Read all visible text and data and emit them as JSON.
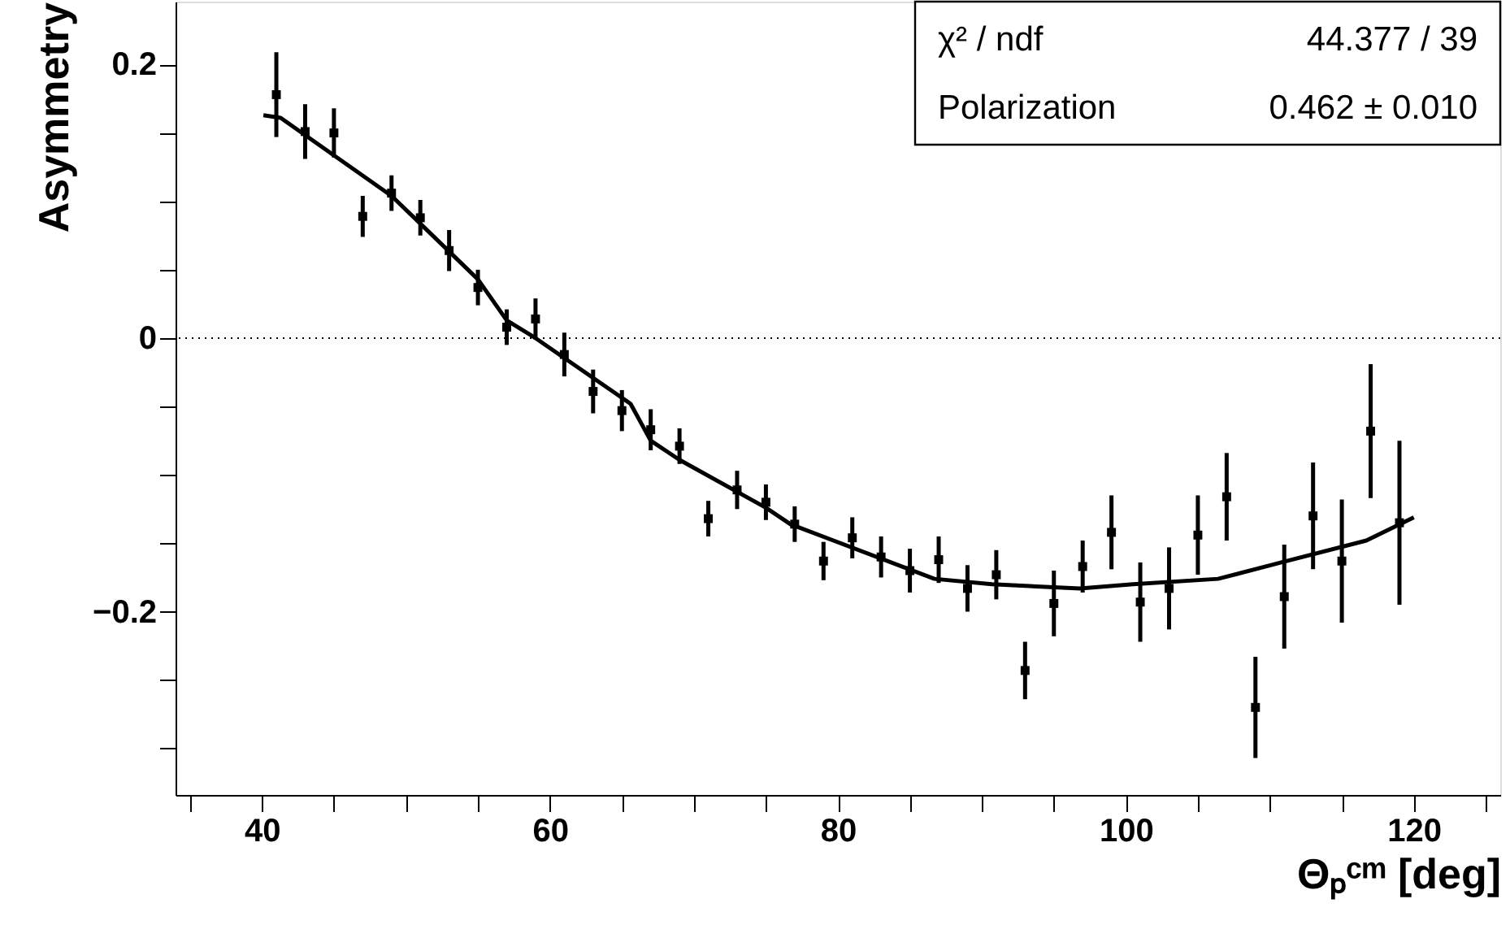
{
  "chart_data": {
    "type": "scatter",
    "xlabel": "Θₚᶜᵐ [deg]",
    "ylabel": "Asymmetry",
    "annotations": [
      "χ² / ndf",
      "44.377 / 39",
      "Polarization",
      "0.462 ± 0.010"
    ],
    "xlim": [
      34,
      126
    ],
    "ylim": [
      -0.334,
      0.246
    ],
    "xticks": [
      {
        "value": 35,
        "label": null
      },
      40,
      {
        "value": 45,
        "label": null
      },
      {
        "value": 50,
        "label": null
      },
      {
        "value": 55,
        "label": null
      },
      60,
      {
        "value": 65,
        "label": null
      },
      {
        "value": 70,
        "label": null
      },
      {
        "value": 75,
        "label": null
      },
      80,
      {
        "value": 85,
        "label": null
      },
      {
        "value": 90,
        "label": null
      },
      {
        "value": 95,
        "label": null
      },
      100,
      {
        "value": 105,
        "label": null
      },
      {
        "value": 110,
        "label": null
      },
      {
        "value": 115,
        "label": null
      },
      120,
      {
        "value": 125,
        "label": null
      }
    ],
    "yticks": [
      {
        "value": -0.3,
        "label": null
      },
      {
        "value": -0.25,
        "label": null
      },
      {
        "value": -0.2,
        "label": "−0.2"
      },
      {
        "value": -0.15,
        "label": null
      },
      {
        "value": -0.1,
        "label": null
      },
      {
        "value": -0.05,
        "label": null
      },
      0,
      {
        "value": 0.05,
        "label": null
      },
      {
        "value": 0.1,
        "label": null
      },
      {
        "value": 0.15,
        "label": null
      },
      0.2
    ],
    "grid": false,
    "ref_lines": [
      {
        "axis": "y",
        "value": 0,
        "line_style": "dotted",
        "color": "#000000"
      }
    ],
    "series": [
      {
        "type": "scatter",
        "marker": "square",
        "color": "#000000",
        "x": [
          41,
          43,
          45,
          47,
          49,
          51,
          53,
          55,
          57,
          59,
          61,
          63,
          65,
          67,
          69,
          71,
          73,
          75,
          77,
          79,
          81,
          83,
          85,
          87,
          89,
          91,
          93,
          95,
          97,
          99,
          101,
          103,
          105,
          107,
          109,
          111,
          113,
          115,
          117,
          119
        ],
        "values": [
          0.178,
          0.151,
          0.15,
          0.089,
          0.106,
          0.088,
          0.064,
          0.037,
          0.008,
          0.014,
          -0.012,
          -0.039,
          -0.053,
          -0.067,
          -0.079,
          -0.132,
          -0.111,
          -0.12,
          -0.136,
          -0.163,
          -0.146,
          -0.16,
          -0.17,
          -0.162,
          -0.183,
          -0.173,
          -0.243,
          -0.194,
          -0.167,
          -0.142,
          -0.193,
          -0.183,
          -0.144,
          -0.116,
          -0.27,
          -0.189,
          -0.13,
          -0.163,
          -0.068,
          -0.135
        ],
        "errors": [
          0.031,
          0.02,
          0.018,
          0.015,
          0.013,
          0.013,
          0.015,
          0.013,
          0.013,
          0.015,
          0.016,
          0.016,
          0.015,
          0.015,
          0.013,
          0.013,
          0.014,
          0.013,
          0.013,
          0.014,
          0.015,
          0.015,
          0.016,
          0.017,
          0.017,
          0.018,
          0.021,
          0.024,
          0.019,
          0.027,
          0.029,
          0.03,
          0.029,
          0.032,
          0.037,
          0.038,
          0.039,
          0.045,
          0.049,
          0.06
        ]
      },
      {
        "type": "line",
        "line_style": "solid",
        "marker": "none",
        "color": "#000000",
        "x": [
          40.1,
          41.3,
          49,
          55,
          57,
          59,
          65.6,
          67,
          69,
          75,
          76.7,
          86.7,
          90.7,
          96.8,
          100.5,
          106.4,
          110.8,
          116.7,
          120
        ],
        "values": [
          0.163,
          0.161,
          0.104,
          0.043,
          0.013,
          0.0,
          -0.048,
          -0.075,
          -0.089,
          -0.124,
          -0.136,
          -0.176,
          -0.18,
          -0.183,
          -0.18,
          -0.176,
          -0.164,
          -0.148,
          -0.131
        ]
      }
    ]
  }
}
